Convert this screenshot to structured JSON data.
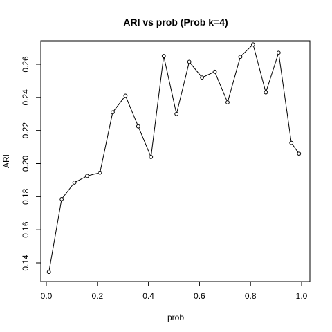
{
  "chart_data": {
    "type": "line",
    "title": "ARI vs prob (Prob k=4)",
    "xlabel": "prob",
    "ylabel": "ARI",
    "xlim": [
      0,
      1
    ],
    "ylim": [
      0.13,
      0.275
    ],
    "xticks": [
      0.0,
      0.2,
      0.4,
      0.6,
      0.8,
      1.0
    ],
    "xtick_labels": [
      "0.0",
      "0.2",
      "0.4",
      "0.6",
      "0.8",
      "1.0"
    ],
    "yticks": [
      0.14,
      0.16,
      0.18,
      0.2,
      0.22,
      0.24,
      0.26
    ],
    "ytick_labels": [
      "0.14",
      "0.16",
      "0.18",
      "0.20",
      "0.22",
      "0.24",
      "0.26"
    ],
    "grid": false,
    "legend": "none",
    "marker": "open-circle",
    "line_color": "#000000",
    "series": [
      {
        "x": [
          0.01,
          0.06,
          0.11,
          0.16,
          0.21,
          0.26,
          0.31,
          0.36,
          0.41,
          0.46,
          0.51,
          0.56,
          0.61,
          0.66,
          0.71,
          0.76,
          0.81,
          0.86,
          0.91,
          0.96,
          0.99
        ],
        "y": [
          0.1345,
          0.1785,
          0.1885,
          0.1925,
          0.1945,
          0.231,
          0.241,
          0.2225,
          0.204,
          0.265,
          0.23,
          0.2615,
          0.252,
          0.2555,
          0.237,
          0.2645,
          0.272,
          0.243,
          0.267,
          0.2125,
          0.206
        ]
      }
    ]
  }
}
